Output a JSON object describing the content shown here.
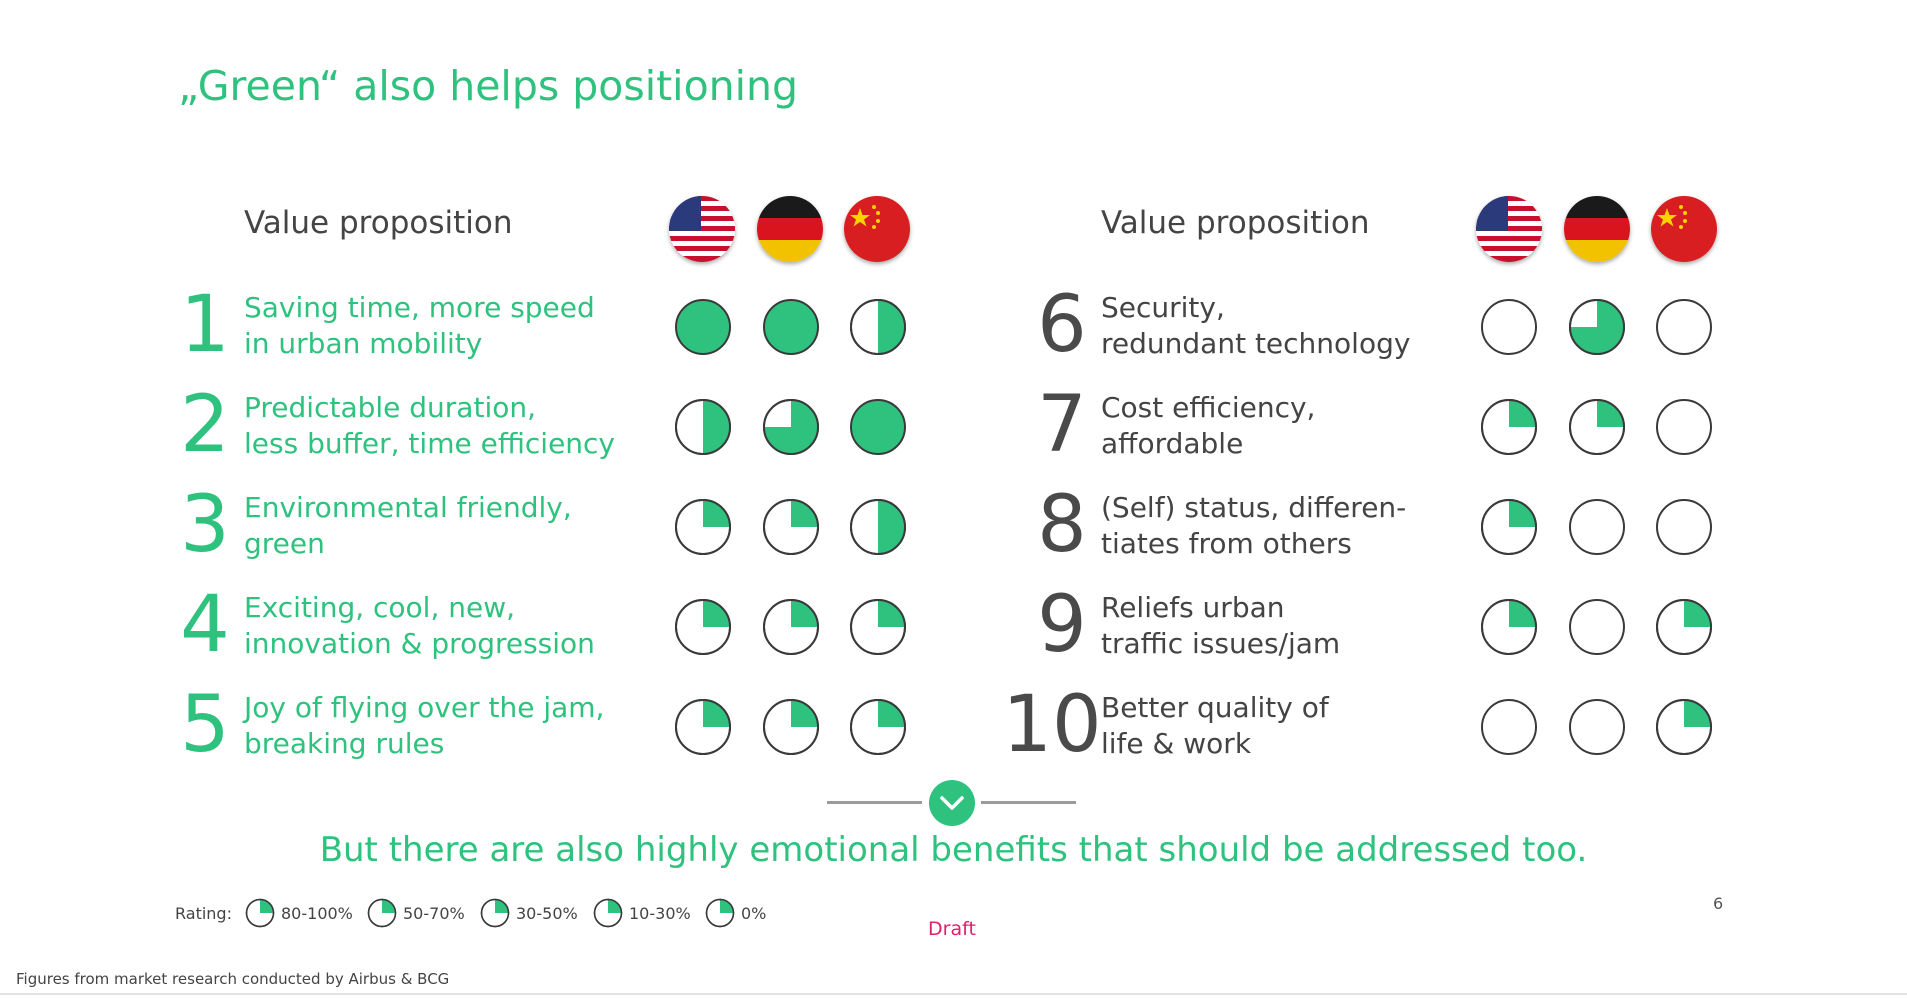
{
  "title": "„Green“ also helps positioning",
  "header_label": "Value proposition",
  "countries": [
    "us-flag-icon",
    "de-flag-icon",
    "cn-flag-icon"
  ],
  "colors": {
    "accent": "#2ec27e",
    "number_gray": "#4a4a4a",
    "draft": "#e0206e"
  },
  "items": [
    {
      "number": "1",
      "label": "Saving time, more speed\nin urban mobility",
      "ratings": [
        1,
        1,
        0.5
      ]
    },
    {
      "number": "2",
      "label": "Predictable duration,\nless buffer, time efficiency",
      "ratings": [
        0.5,
        0.75,
        1
      ]
    },
    {
      "number": "3",
      "label": "Environmental friendly,\ngreen",
      "ratings": [
        0.25,
        0.25,
        0.5
      ]
    },
    {
      "number": "4",
      "label": "Exciting, cool, new,\ninnovation & progression",
      "ratings": [
        0.25,
        0.25,
        0.25
      ]
    },
    {
      "number": "5",
      "label": "Joy of flying over the jam,\nbreaking rules",
      "ratings": [
        0.25,
        0.25,
        0.25
      ]
    },
    {
      "number": "6",
      "label": "Security,\nredundant technology",
      "ratings": [
        0,
        0.75,
        0
      ]
    },
    {
      "number": "7",
      "label": "Cost efficiency,\naffordable",
      "ratings": [
        0.25,
        0.25,
        0
      ]
    },
    {
      "number": "8",
      "label": "(Self) status, differen-\ntiates from others",
      "ratings": [
        0.25,
        0,
        0
      ]
    },
    {
      "number": "9",
      "label": "Reliefs urban\ntraffic issues/jam",
      "ratings": [
        0.25,
        0,
        0.25
      ]
    },
    {
      "number": "10",
      "label": "Better quality of\nlife & work",
      "ratings": [
        0,
        0,
        0.25
      ]
    }
  ],
  "conclusion": "But there are also highly emotional benefits that should be addressed too.",
  "legend": {
    "label": "Rating:",
    "entries": [
      {
        "text": "80-100%",
        "fill": 0.25
      },
      {
        "text": "50-70%",
        "fill": 0.25
      },
      {
        "text": "30-50%",
        "fill": 0.25
      },
      {
        "text": "10-30%",
        "fill": 0.25
      },
      {
        "text": "0%",
        "fill": 0.25
      }
    ]
  },
  "page_number": "6",
  "draft": "Draft",
  "source": "Figures from market research conducted by Airbus & BCG"
}
